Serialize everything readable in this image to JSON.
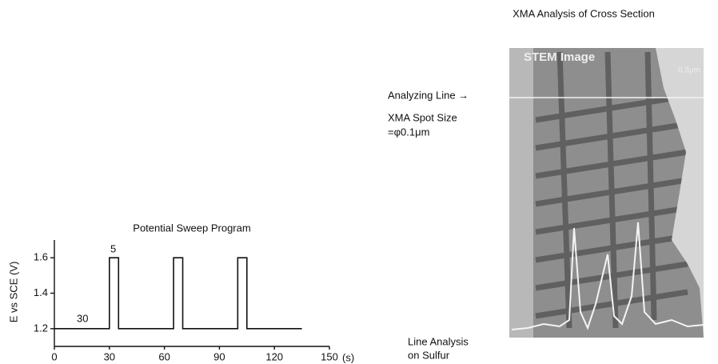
{
  "chart_data": {
    "type": "line",
    "title": "Potential Sweep Program",
    "x": [
      0,
      30,
      30,
      35,
      35,
      65,
      65,
      70,
      70,
      100,
      100,
      105,
      105,
      135
    ],
    "values": [
      1.2,
      1.2,
      1.6,
      1.6,
      1.2,
      1.2,
      1.6,
      1.6,
      1.2,
      1.2,
      1.6,
      1.6,
      1.2,
      1.2
    ],
    "color": "#111111",
    "xlim": [
      0,
      150
    ],
    "xticks": [
      0,
      30,
      60,
      90,
      120,
      150
    ],
    "xlabel": "(s)",
    "ylim": [
      1.1,
      1.7
    ],
    "yticks": [
      1.2,
      1.4,
      1.6
    ],
    "ylabel": "E vs SCE (V)",
    "annotations": [
      "30",
      "5"
    ]
  },
  "figure": {
    "title": "XMA Analysis of Cross Section",
    "image_label": "STEM Image",
    "scale_label": "0.5μm",
    "analyzing_line": "Analyzing Line →",
    "spot_size": "XMA Spot Size",
    "spot_value": "=φ0.1μm",
    "line_analysis": [
      "Line Analysis",
      "on Sulfur"
    ]
  }
}
